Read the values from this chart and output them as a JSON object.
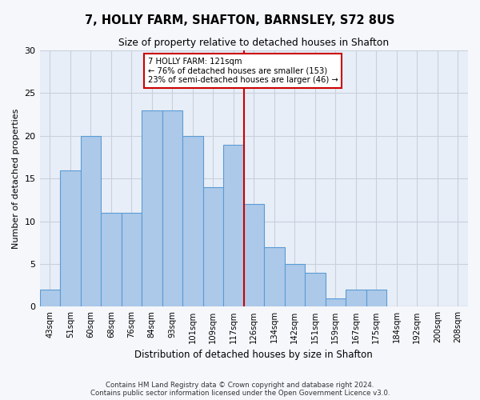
{
  "title": "7, HOLLY FARM, SHAFTON, BARNSLEY, S72 8US",
  "subtitle": "Size of property relative to detached houses in Shafton",
  "xlabel": "Distribution of detached houses by size in Shafton",
  "ylabel": "Number of detached properties",
  "bar_labels": [
    "43sqm",
    "51sqm",
    "60sqm",
    "68sqm",
    "76sqm",
    "84sqm",
    "93sqm",
    "101sqm",
    "109sqm",
    "117sqm",
    "126sqm",
    "134sqm",
    "142sqm",
    "151sqm",
    "159sqm",
    "167sqm",
    "175sqm",
    "184sqm",
    "192sqm",
    "200sqm",
    "208sqm"
  ],
  "bar_values": [
    2,
    16,
    20,
    11,
    11,
    23,
    23,
    20,
    14,
    19,
    12,
    7,
    5,
    4,
    1,
    2,
    2,
    0,
    0,
    0,
    0
  ],
  "bar_color": "#adc9e9",
  "bar_edge_color": "#5a9bd5",
  "vline_color": "#cc0000",
  "vline_x_index": 9.5,
  "annotation_title": "7 HOLLY FARM: 121sqm",
  "annotation_line1": "← 76% of detached houses are smaller (153)",
  "annotation_line2": "23% of semi-detached houses are larger (46) →",
  "annotation_box_facecolor": "#ffffff",
  "annotation_box_edgecolor": "#cc0000",
  "ylim": [
    0,
    30
  ],
  "yticks": [
    0,
    5,
    10,
    15,
    20,
    25,
    30
  ],
  "grid_color": "#c8d0dc",
  "fig_facecolor": "#f5f7fb",
  "ax_facecolor": "#e8eef7",
  "footnote1": "Contains HM Land Registry data © Crown copyright and database right 2024.",
  "footnote2": "Contains public sector information licensed under the Open Government Licence v3.0."
}
